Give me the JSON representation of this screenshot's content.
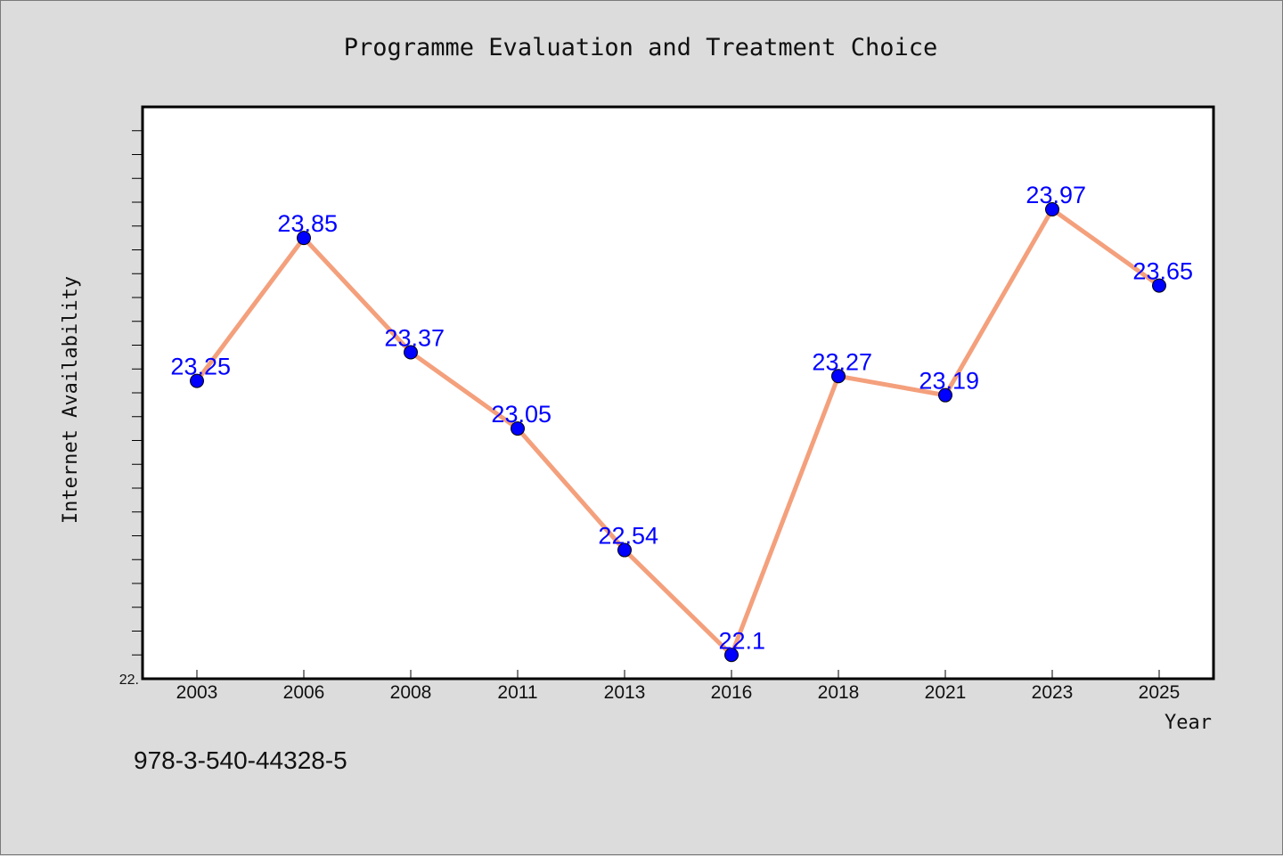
{
  "isbn": "978-3-540-44328-5",
  "colors": {
    "line": "#f4a07c",
    "marker": "#0000ff",
    "label": "#0000ff",
    "plot_bg": "#ffffff",
    "page_bg": "#dcdcdc"
  },
  "chart_data": {
    "type": "line",
    "title": "Programme Evaluation and Treatment Choice",
    "xlabel": "Year",
    "ylabel": "Internet Availability",
    "categories": [
      "2003",
      "2006",
      "2008",
      "2011",
      "2013",
      "2016",
      "2018",
      "2021",
      "2023",
      "2025"
    ],
    "series": [
      {
        "values": [
          23.25,
          23.85,
          23.37,
          23.05,
          22.54,
          22.1,
          23.27,
          23.19,
          23.97,
          23.65
        ],
        "labels": [
          "23.25",
          "23.85",
          "23.37",
          "23.05",
          "22.54",
          "22.1",
          "23.27",
          "23.19",
          "23.97",
          "23.65"
        ]
      }
    ],
    "ylim": [
      22.0,
      24.4
    ],
    "yticks": [
      {
        "value": 22.0,
        "label": "22."
      }
    ],
    "minor_tick_step": 0.1,
    "grid": false,
    "legend": "none"
  }
}
